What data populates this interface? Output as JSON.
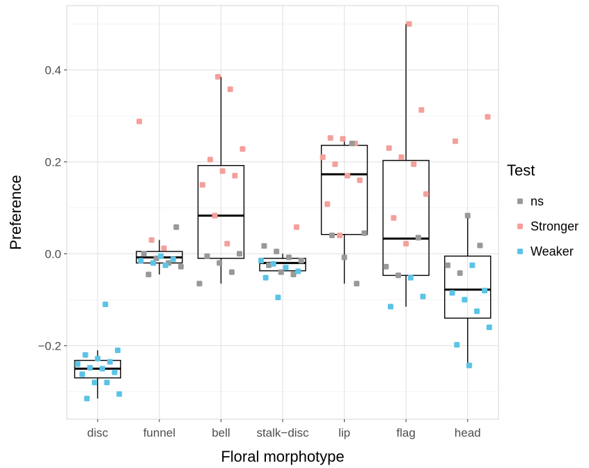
{
  "chart_data": {
    "type": "boxplot",
    "xlabel": "Floral morphotype",
    "ylabel": "Preference",
    "categories": [
      "disc",
      "funnel",
      "bell",
      "stalk−disc",
      "lip",
      "flag",
      "head"
    ],
    "ylim": [
      -0.36,
      0.54
    ],
    "yticks": [
      -0.2,
      0.0,
      0.2,
      0.4
    ],
    "ytick_labels": [
      "−0.2",
      "0.0",
      "0.2",
      "0.4"
    ],
    "grid": true,
    "legend": {
      "title": "Test",
      "placement": "right",
      "entries": [
        {
          "name": "ns",
          "color": "#999999"
        },
        {
          "name": "Stronger",
          "color": "#f4a09b"
        },
        {
          "name": "Weaker",
          "color": "#5bc4e6"
        }
      ]
    },
    "boxes": [
      {
        "category": "disc",
        "min": -0.315,
        "q1": -0.27,
        "median": -0.25,
        "q3": -0.232,
        "max": -0.21
      },
      {
        "category": "funnel",
        "min": -0.045,
        "q1": -0.02,
        "median": -0.008,
        "q3": 0.005,
        "max": 0.03
      },
      {
        "category": "bell",
        "min": -0.065,
        "q1": -0.01,
        "median": 0.083,
        "q3": 0.192,
        "max": 0.385
      },
      {
        "category": "stalk−disc",
        "min": -0.045,
        "q1": -0.037,
        "median": -0.02,
        "q3": -0.01,
        "max": 0.0
      },
      {
        "category": "lip",
        "min": -0.065,
        "q1": 0.042,
        "median": 0.173,
        "q3": 0.236,
        "max": 0.25
      },
      {
        "category": "flag",
        "min": -0.115,
        "q1": -0.047,
        "median": 0.033,
        "q3": 0.203,
        "max": 0.5
      },
      {
        "category": "head",
        "min": -0.24,
        "q1": -0.14,
        "median": -0.078,
        "q3": -0.005,
        "max": 0.083
      }
    ],
    "points": [
      {
        "x": 1,
        "y": -0.11,
        "test": "Weaker"
      },
      {
        "x": 1,
        "y": -0.21,
        "test": "Weaker"
      },
      {
        "x": 1,
        "y": -0.22,
        "test": "Weaker"
      },
      {
        "x": 1,
        "y": -0.228,
        "test": "Weaker"
      },
      {
        "x": 1,
        "y": -0.235,
        "test": "Weaker"
      },
      {
        "x": 1,
        "y": -0.24,
        "test": "Weaker"
      },
      {
        "x": 1,
        "y": -0.248,
        "test": "Weaker"
      },
      {
        "x": 1,
        "y": -0.25,
        "test": "Weaker"
      },
      {
        "x": 1,
        "y": -0.258,
        "test": "Weaker"
      },
      {
        "x": 1,
        "y": -0.262,
        "test": "Weaker"
      },
      {
        "x": 1,
        "y": -0.28,
        "test": "Weaker"
      },
      {
        "x": 1,
        "y": -0.28,
        "test": "Weaker"
      },
      {
        "x": 1,
        "y": -0.305,
        "test": "Weaker"
      },
      {
        "x": 1,
        "y": -0.315,
        "test": "Weaker"
      },
      {
        "x": 2,
        "y": 0.288,
        "test": "Stronger"
      },
      {
        "x": 2,
        "y": 0.03,
        "test": "Stronger"
      },
      {
        "x": 2,
        "y": 0.012,
        "test": "Stronger"
      },
      {
        "x": 2,
        "y": 0.058,
        "test": "ns"
      },
      {
        "x": 2,
        "y": 0.0,
        "test": "ns"
      },
      {
        "x": 2,
        "y": -0.01,
        "test": "ns"
      },
      {
        "x": 2,
        "y": -0.02,
        "test": "ns"
      },
      {
        "x": 2,
        "y": -0.028,
        "test": "ns"
      },
      {
        "x": 2,
        "y": -0.045,
        "test": "ns"
      },
      {
        "x": 2,
        "y": -0.005,
        "test": "Weaker"
      },
      {
        "x": 2,
        "y": -0.012,
        "test": "Weaker"
      },
      {
        "x": 2,
        "y": -0.015,
        "test": "Weaker"
      },
      {
        "x": 2,
        "y": -0.02,
        "test": "Weaker"
      },
      {
        "x": 2,
        "y": -0.025,
        "test": "Weaker"
      },
      {
        "x": 3,
        "y": 0.385,
        "test": "Stronger"
      },
      {
        "x": 3,
        "y": 0.358,
        "test": "Stronger"
      },
      {
        "x": 3,
        "y": 0.228,
        "test": "Stronger"
      },
      {
        "x": 3,
        "y": 0.205,
        "test": "Stronger"
      },
      {
        "x": 3,
        "y": 0.18,
        "test": "Stronger"
      },
      {
        "x": 3,
        "y": 0.17,
        "test": "Stronger"
      },
      {
        "x": 3,
        "y": 0.15,
        "test": "Stronger"
      },
      {
        "x": 3,
        "y": 0.083,
        "test": "Stronger"
      },
      {
        "x": 3,
        "y": 0.022,
        "test": "Stronger"
      },
      {
        "x": 3,
        "y": 0.0,
        "test": "ns"
      },
      {
        "x": 3,
        "y": -0.005,
        "test": "ns"
      },
      {
        "x": 3,
        "y": -0.02,
        "test": "ns"
      },
      {
        "x": 3,
        "y": -0.04,
        "test": "ns"
      },
      {
        "x": 3,
        "y": -0.065,
        "test": "ns"
      },
      {
        "x": 4,
        "y": 0.058,
        "test": "Stronger"
      },
      {
        "x": 4,
        "y": 0.017,
        "test": "ns"
      },
      {
        "x": 4,
        "y": 0.005,
        "test": "ns"
      },
      {
        "x": 4,
        "y": -0.008,
        "test": "ns"
      },
      {
        "x": 4,
        "y": -0.015,
        "test": "ns"
      },
      {
        "x": 4,
        "y": -0.025,
        "test": "ns"
      },
      {
        "x": 4,
        "y": -0.04,
        "test": "ns"
      },
      {
        "x": 4,
        "y": -0.045,
        "test": "ns"
      },
      {
        "x": 4,
        "y": -0.015,
        "test": "Weaker"
      },
      {
        "x": 4,
        "y": -0.022,
        "test": "Weaker"
      },
      {
        "x": 4,
        "y": -0.03,
        "test": "Weaker"
      },
      {
        "x": 4,
        "y": -0.038,
        "test": "Weaker"
      },
      {
        "x": 4,
        "y": -0.052,
        "test": "Weaker"
      },
      {
        "x": 4,
        "y": -0.095,
        "test": "Weaker"
      },
      {
        "x": 5,
        "y": 0.252,
        "test": "Stronger"
      },
      {
        "x": 5,
        "y": 0.25,
        "test": "Stronger"
      },
      {
        "x": 5,
        "y": 0.24,
        "test": "Stronger"
      },
      {
        "x": 5,
        "y": 0.21,
        "test": "Stronger"
      },
      {
        "x": 5,
        "y": 0.195,
        "test": "Stronger"
      },
      {
        "x": 5,
        "y": 0.17,
        "test": "Stronger"
      },
      {
        "x": 5,
        "y": 0.16,
        "test": "Stronger"
      },
      {
        "x": 5,
        "y": 0.108,
        "test": "Stronger"
      },
      {
        "x": 5,
        "y": 0.04,
        "test": "Stronger"
      },
      {
        "x": 5,
        "y": 0.24,
        "test": "ns"
      },
      {
        "x": 5,
        "y": 0.045,
        "test": "ns"
      },
      {
        "x": 5,
        "y": 0.04,
        "test": "ns"
      },
      {
        "x": 5,
        "y": -0.008,
        "test": "ns"
      },
      {
        "x": 5,
        "y": -0.065,
        "test": "ns"
      },
      {
        "x": 6,
        "y": 0.5,
        "test": "Stronger"
      },
      {
        "x": 6,
        "y": 0.313,
        "test": "Stronger"
      },
      {
        "x": 6,
        "y": 0.23,
        "test": "Stronger"
      },
      {
        "x": 6,
        "y": 0.21,
        "test": "Stronger"
      },
      {
        "x": 6,
        "y": 0.195,
        "test": "Stronger"
      },
      {
        "x": 6,
        "y": 0.13,
        "test": "Stronger"
      },
      {
        "x": 6,
        "y": 0.078,
        "test": "Stronger"
      },
      {
        "x": 6,
        "y": 0.022,
        "test": "Stronger"
      },
      {
        "x": 6,
        "y": 0.035,
        "test": "ns"
      },
      {
        "x": 6,
        "y": -0.028,
        "test": "ns"
      },
      {
        "x": 6,
        "y": -0.047,
        "test": "ns"
      },
      {
        "x": 6,
        "y": -0.052,
        "test": "Weaker"
      },
      {
        "x": 6,
        "y": -0.093,
        "test": "Weaker"
      },
      {
        "x": 6,
        "y": -0.115,
        "test": "Weaker"
      },
      {
        "x": 7,
        "y": 0.298,
        "test": "Stronger"
      },
      {
        "x": 7,
        "y": 0.245,
        "test": "Stronger"
      },
      {
        "x": 7,
        "y": 0.083,
        "test": "ns"
      },
      {
        "x": 7,
        "y": 0.018,
        "test": "ns"
      },
      {
        "x": 7,
        "y": -0.025,
        "test": "ns"
      },
      {
        "x": 7,
        "y": -0.042,
        "test": "ns"
      },
      {
        "x": 7,
        "y": -0.025,
        "test": "Weaker"
      },
      {
        "x": 7,
        "y": -0.08,
        "test": "Weaker"
      },
      {
        "x": 7,
        "y": -0.085,
        "test": "Weaker"
      },
      {
        "x": 7,
        "y": -0.1,
        "test": "Weaker"
      },
      {
        "x": 7,
        "y": -0.125,
        "test": "Weaker"
      },
      {
        "x": 7,
        "y": -0.16,
        "test": "Weaker"
      },
      {
        "x": 7,
        "y": -0.198,
        "test": "Weaker"
      },
      {
        "x": 7,
        "y": -0.243,
        "test": "Weaker"
      }
    ]
  }
}
